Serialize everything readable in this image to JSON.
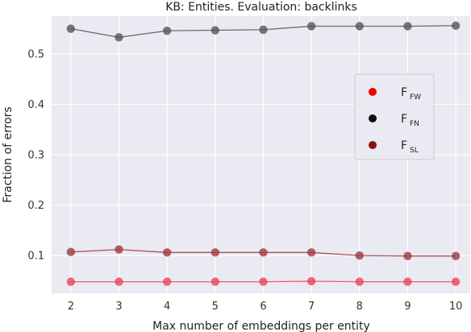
{
  "chart_data": {
    "type": "line",
    "title": "KB: Entities. Evaluation: backlinks",
    "xlabel": "Max number of embeddings per entity",
    "ylabel": "Fraction of errors",
    "x": [
      2,
      3,
      4,
      5,
      6,
      7,
      8,
      9,
      10
    ],
    "xlim": [
      1.6,
      10.3
    ],
    "ylim": [
      0.025,
      0.575
    ],
    "xticks": [
      "2",
      "3",
      "4",
      "5",
      "6",
      "7",
      "8",
      "9",
      "10"
    ],
    "yticks": [
      "0.1",
      "0.2",
      "0.3",
      "0.4",
      "0.5"
    ],
    "ytick_values": [
      0.1,
      0.2,
      0.3,
      0.4,
      0.5
    ],
    "grid": true,
    "background": "#eaeaf2",
    "legend_position": "right",
    "series": [
      {
        "name_main": "F",
        "name_sub": "FW",
        "color": "#ee4455",
        "values": [
          0.048,
          0.048,
          0.048,
          0.048,
          0.048,
          0.049,
          0.048,
          0.048,
          0.048
        ]
      },
      {
        "name_main": "F",
        "name_sub": "FN",
        "color": "#555555",
        "values": [
          0.55,
          0.533,
          0.546,
          0.547,
          0.548,
          0.555,
          0.555,
          0.555,
          0.556
        ]
      },
      {
        "name_main": "F",
        "name_sub": "SL",
        "color": "#9e3a40",
        "values": [
          0.107,
          0.112,
          0.106,
          0.106,
          0.106,
          0.106,
          0.1,
          0.099,
          0.099
        ]
      }
    ],
    "legend_colors": [
      "#ee0000",
      "#111111",
      "#8b1010"
    ]
  }
}
